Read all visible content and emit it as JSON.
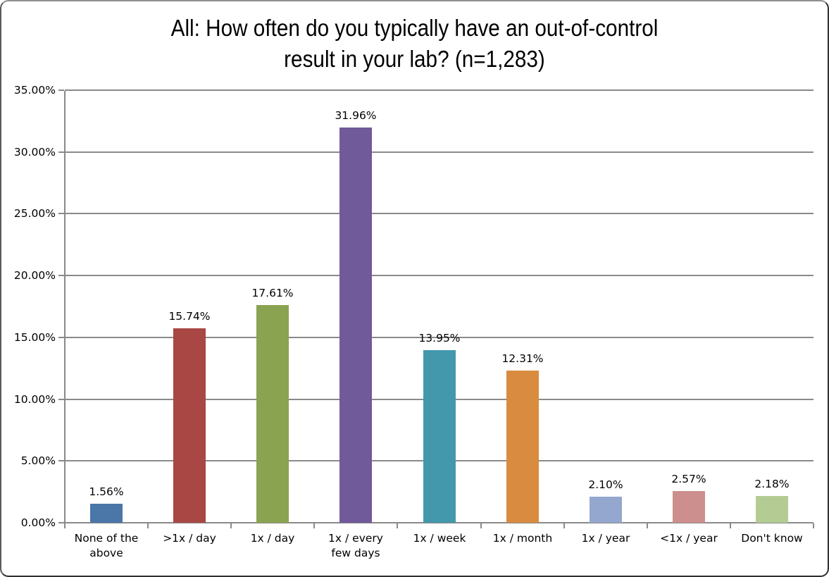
{
  "title_lines": [
    "All: How often do you typically have an out-of-control",
    "result in your lab? (n=1,283)"
  ],
  "chart_data": {
    "type": "bar",
    "title": "All: How often do you typically have an out-of-control result in your lab? (n=1,283)",
    "categories": [
      "None of the above",
      ">1x / day",
      "1x / day",
      "1x / every few days",
      "1x / week",
      "1x / month",
      "1x / year",
      "<1x / year",
      "Don't know"
    ],
    "values": [
      1.56,
      15.74,
      17.61,
      31.96,
      13.95,
      12.31,
      2.1,
      2.57,
      2.18
    ],
    "value_labels": [
      "1.56%",
      "15.74%",
      "17.61%",
      "31.96%",
      "13.95%",
      "12.31%",
      "2.10%",
      "2.57%",
      "2.18%"
    ],
    "bar_colors": [
      "#4a76a8",
      "#a84743",
      "#8aa351",
      "#715a99",
      "#4398ac",
      "#d98c40",
      "#94a7cf",
      "#cc8f8d",
      "#b4cc94"
    ],
    "xlabel": "",
    "ylabel": "",
    "ylim": [
      0,
      35
    ],
    "ytick_step": 5,
    "ytick_labels": [
      "0.00%",
      "5.00%",
      "10.00%",
      "15.00%",
      "20.00%",
      "25.00%",
      "30.00%",
      "35.00%"
    ],
    "grid": true,
    "legend": false,
    "styles": {
      "gridline_color": "#8a8a8a",
      "axis_color": "#8a8a8a",
      "text_color": "#000000",
      "background": "#ffffff",
      "frame_border": "#2e2e2e"
    }
  }
}
